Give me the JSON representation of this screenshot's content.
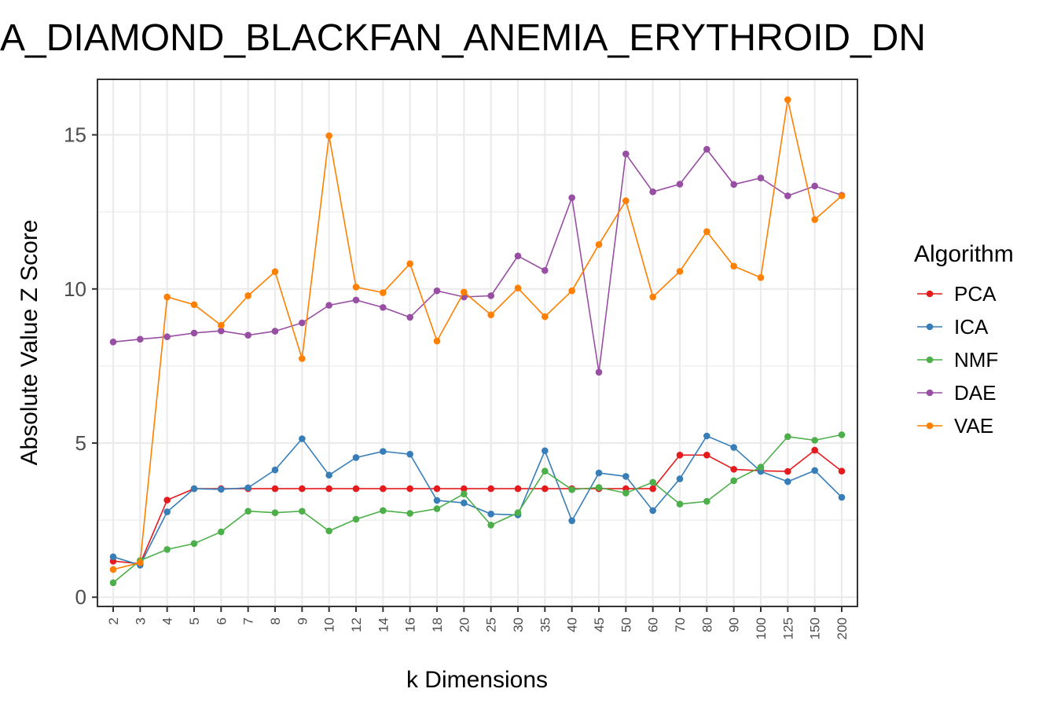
{
  "chart_data": {
    "type": "line",
    "title": "A_DIAMOND_BLACKFAN_ANEMIA_ERYTHROID_DN",
    "xlabel": "k Dimensions",
    "ylabel": "Absolute Value Z Score",
    "categories": [
      "2",
      "3",
      "4",
      "5",
      "6",
      "7",
      "8",
      "9",
      "10",
      "12",
      "14",
      "16",
      "18",
      "20",
      "25",
      "30",
      "35",
      "40",
      "45",
      "50",
      "60",
      "70",
      "80",
      "90",
      "100",
      "125",
      "150",
      "200"
    ],
    "yticks": [
      0,
      5,
      10,
      15
    ],
    "ylim": [
      -0.3,
      16.8
    ],
    "grid": true,
    "legend": {
      "title": "Algorithm",
      "position": "right"
    },
    "series": [
      {
        "name": "PCA",
        "color": "#E41A1C",
        "values": [
          1.17,
          1.09,
          3.15,
          3.52,
          3.52,
          3.52,
          3.52,
          3.52,
          3.52,
          3.52,
          3.52,
          3.52,
          3.52,
          3.52,
          3.52,
          3.52,
          3.52,
          3.52,
          3.52,
          3.52,
          3.52,
          4.61,
          4.61,
          4.15,
          4.1,
          4.08,
          4.77,
          4.09
        ]
      },
      {
        "name": "ICA",
        "color": "#377EB8",
        "values": [
          1.31,
          1.04,
          2.77,
          3.52,
          3.5,
          3.55,
          4.13,
          5.14,
          3.96,
          4.53,
          4.73,
          4.64,
          3.14,
          3.06,
          2.7,
          2.67,
          4.75,
          2.48,
          4.03,
          3.92,
          2.81,
          3.84,
          5.23,
          4.86,
          4.08,
          3.75,
          4.11,
          3.24
        ]
      },
      {
        "name": "NMF",
        "color": "#4DAF4A",
        "values": [
          0.47,
          1.19,
          1.55,
          1.74,
          2.12,
          2.79,
          2.74,
          2.79,
          2.15,
          2.53,
          2.81,
          2.72,
          2.87,
          3.35,
          2.34,
          2.74,
          4.09,
          3.49,
          3.56,
          3.38,
          3.73,
          3.02,
          3.11,
          3.78,
          4.22,
          5.21,
          5.09,
          5.27
        ]
      },
      {
        "name": "DAE",
        "color": "#984EA3",
        "values": [
          8.28,
          8.37,
          8.45,
          8.57,
          8.64,
          8.5,
          8.63,
          8.9,
          9.47,
          9.64,
          9.4,
          9.08,
          9.94,
          9.74,
          9.78,
          11.07,
          10.6,
          12.96,
          7.3,
          14.38,
          13.15,
          13.4,
          14.53,
          13.39,
          13.6,
          13.02,
          13.34,
          13.04
        ]
      },
      {
        "name": "VAE",
        "color": "#FF7F00",
        "values": [
          0.9,
          1.12,
          9.74,
          9.49,
          8.82,
          9.78,
          10.56,
          7.74,
          14.97,
          10.06,
          9.88,
          10.82,
          8.31,
          9.9,
          9.16,
          10.03,
          9.1,
          9.94,
          11.44,
          12.86,
          9.74,
          10.57,
          11.86,
          10.74,
          10.37,
          16.14,
          12.25,
          13.02
        ]
      }
    ]
  }
}
